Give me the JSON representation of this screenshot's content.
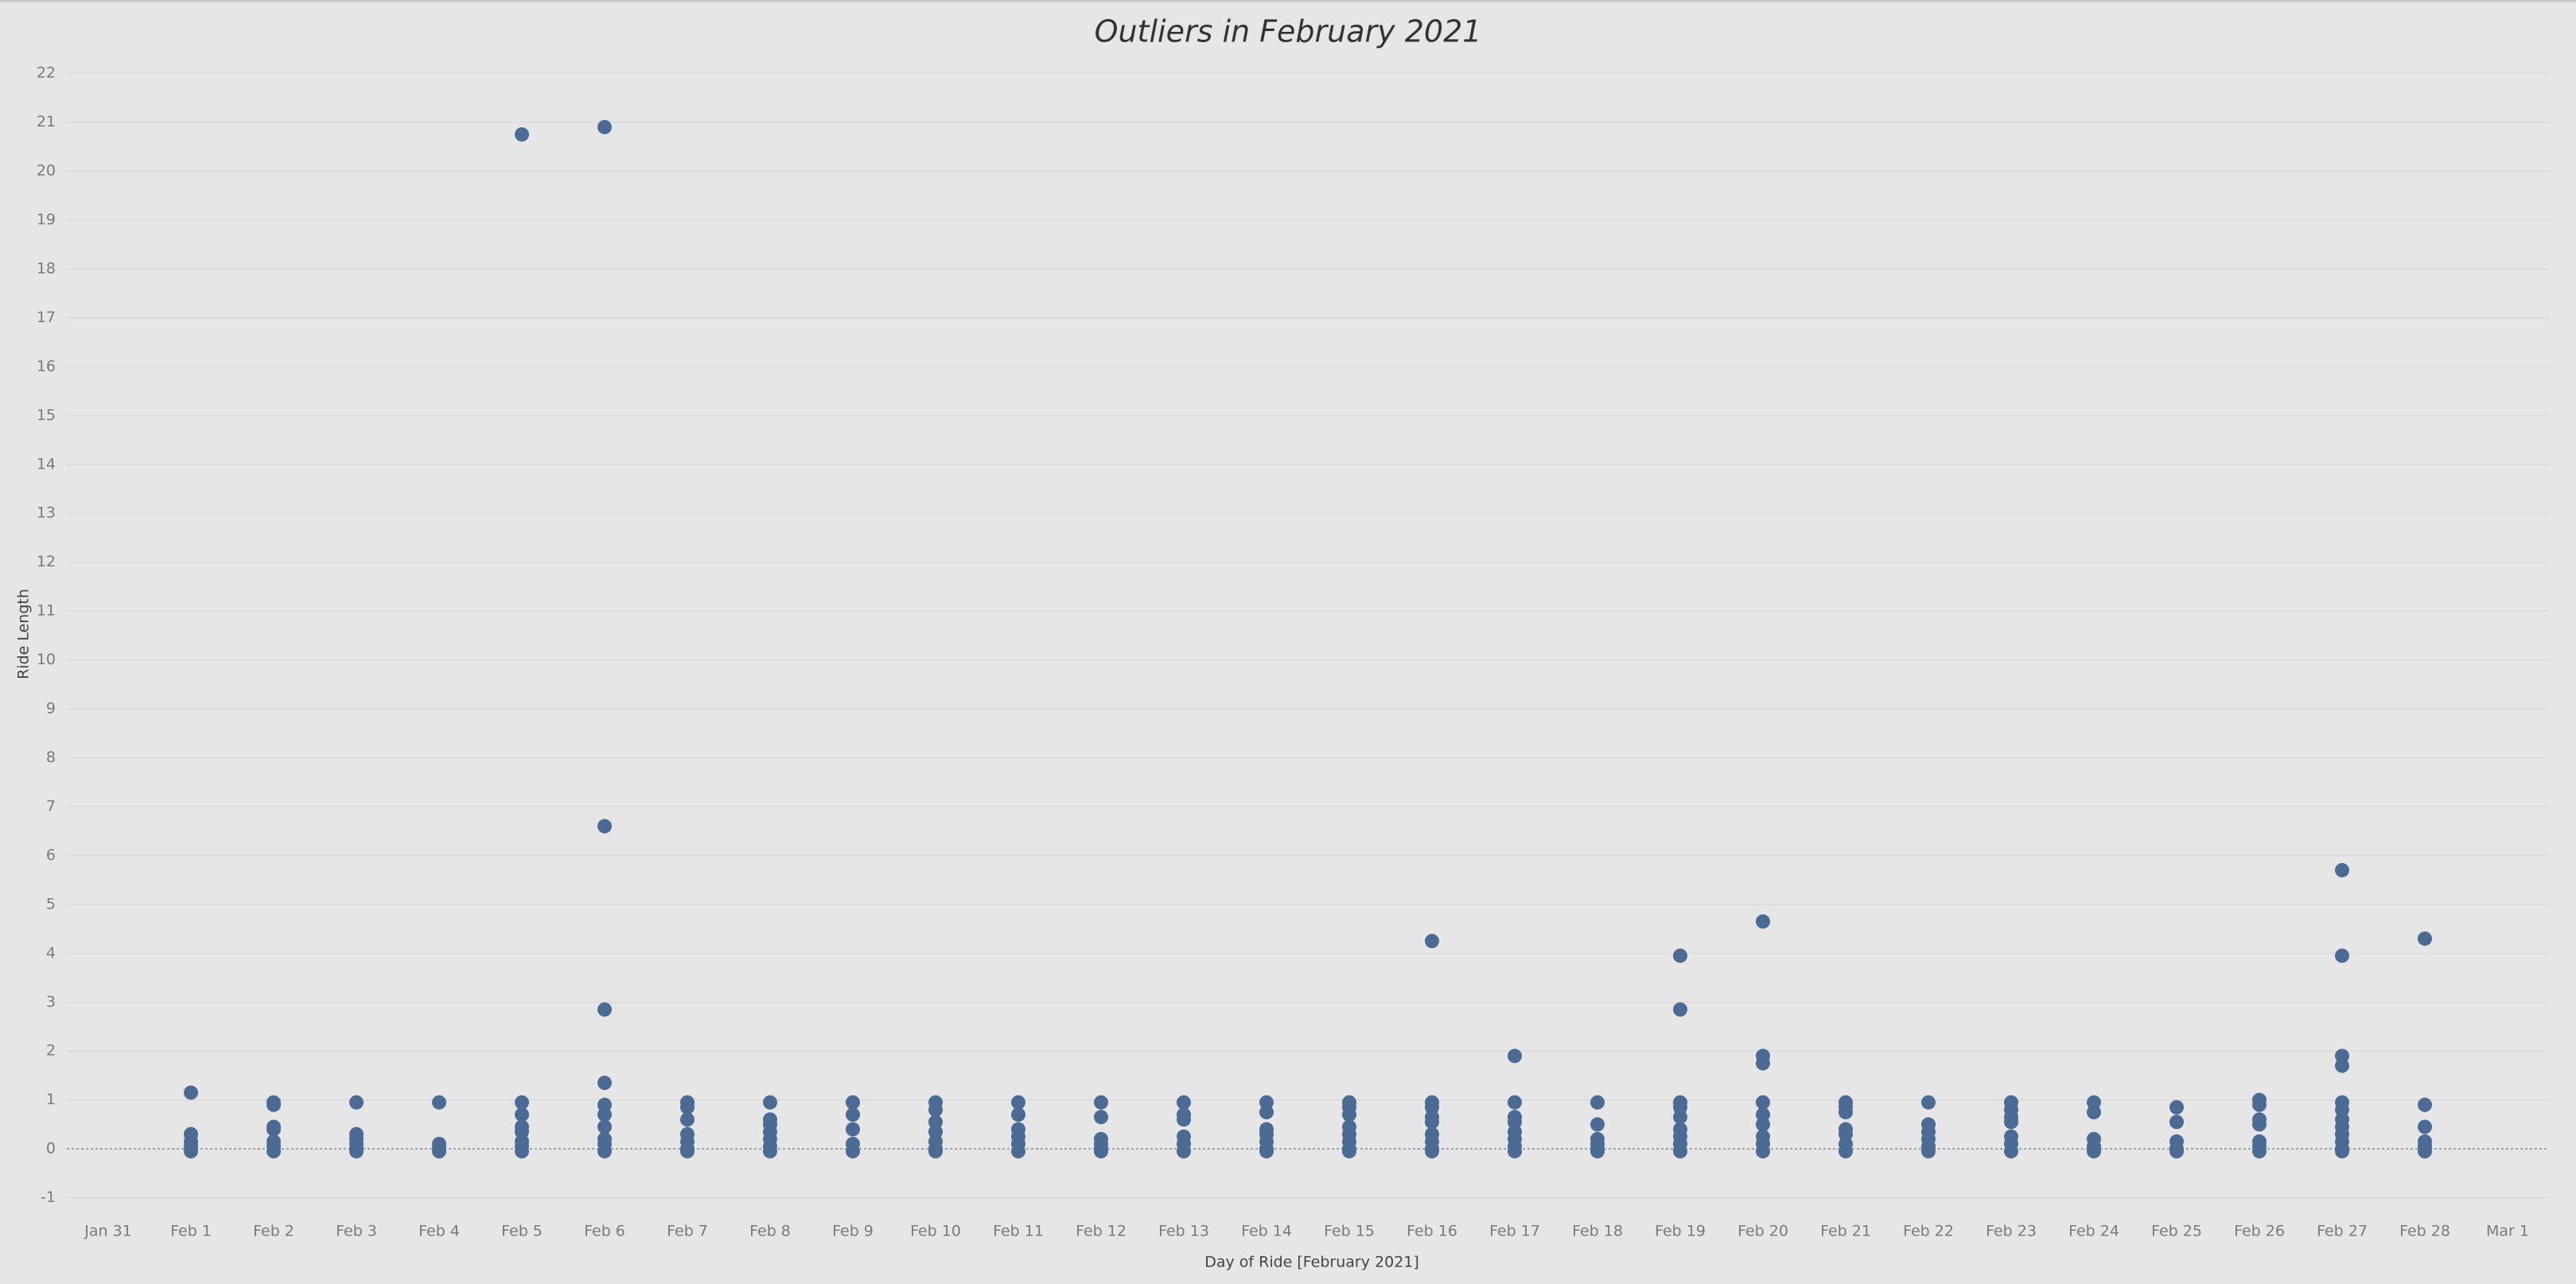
{
  "chart_data": {
    "type": "scatter",
    "title": "Outliers in February 2021",
    "x_label": "Day of Ride [February 2021]",
    "y_label": "Ride Length",
    "categories": [
      "Jan 31",
      "Feb 1",
      "Feb 2",
      "Feb 3",
      "Feb 4",
      "Feb 5",
      "Feb 6",
      "Feb 7",
      "Feb 8",
      "Feb 9",
      "Feb 10",
      "Feb 11",
      "Feb 12",
      "Feb 13",
      "Feb 14",
      "Feb 15",
      "Feb 16",
      "Feb 17",
      "Feb 18",
      "Feb 19",
      "Feb 20",
      "Feb 21",
      "Feb 22",
      "Feb 23",
      "Feb 24",
      "Feb 25",
      "Feb 26",
      "Feb 27",
      "Feb 28",
      "Mar 1"
    ],
    "x": [
      "Feb 1",
      "Feb 1",
      "Feb 1",
      "Feb 1",
      "Feb 1",
      "Feb 2",
      "Feb 2",
      "Feb 2",
      "Feb 2",
      "Feb 2",
      "Feb 2",
      "Feb 2",
      "Feb 3",
      "Feb 3",
      "Feb 3",
      "Feb 3",
      "Feb 3",
      "Feb 3",
      "Feb 4",
      "Feb 4",
      "Feb 4",
      "Feb 4",
      "Feb 5",
      "Feb 5",
      "Feb 5",
      "Feb 5",
      "Feb 5",
      "Feb 5",
      "Feb 5",
      "Feb 5",
      "Feb 6",
      "Feb 6",
      "Feb 6",
      "Feb 6",
      "Feb 6",
      "Feb 6",
      "Feb 6",
      "Feb 6",
      "Feb 6",
      "Feb 6",
      "Feb 7",
      "Feb 7",
      "Feb 7",
      "Feb 7",
      "Feb 7",
      "Feb 7",
      "Feb 7",
      "Feb 8",
      "Feb 8",
      "Feb 8",
      "Feb 8",
      "Feb 8",
      "Feb 8",
      "Feb 8",
      "Feb 9",
      "Feb 9",
      "Feb 9",
      "Feb 9",
      "Feb 9",
      "Feb 10",
      "Feb 10",
      "Feb 10",
      "Feb 10",
      "Feb 10",
      "Feb 10",
      "Feb 10",
      "Feb 11",
      "Feb 11",
      "Feb 11",
      "Feb 11",
      "Feb 11",
      "Feb 11",
      "Feb 12",
      "Feb 12",
      "Feb 12",
      "Feb 12",
      "Feb 12",
      "Feb 12",
      "Feb 13",
      "Feb 13",
      "Feb 13",
      "Feb 13",
      "Feb 13",
      "Feb 13",
      "Feb 14",
      "Feb 14",
      "Feb 14",
      "Feb 14",
      "Feb 14",
      "Feb 14",
      "Feb 14",
      "Feb 15",
      "Feb 15",
      "Feb 15",
      "Feb 15",
      "Feb 15",
      "Feb 15",
      "Feb 15",
      "Feb 15",
      "Feb 16",
      "Feb 16",
      "Feb 16",
      "Feb 16",
      "Feb 16",
      "Feb 16",
      "Feb 16",
      "Feb 16",
      "Feb 16",
      "Feb 17",
      "Feb 17",
      "Feb 17",
      "Feb 17",
      "Feb 17",
      "Feb 17",
      "Feb 17",
      "Feb 17",
      "Feb 18",
      "Feb 18",
      "Feb 18",
      "Feb 18",
      "Feb 18",
      "Feb 18",
      "Feb 19",
      "Feb 19",
      "Feb 19",
      "Feb 19",
      "Feb 19",
      "Feb 19",
      "Feb 19",
      "Feb 19",
      "Feb 19",
      "Feb 20",
      "Feb 20",
      "Feb 20",
      "Feb 20",
      "Feb 20",
      "Feb 20",
      "Feb 20",
      "Feb 20",
      "Feb 20",
      "Feb 21",
      "Feb 21",
      "Feb 21",
      "Feb 21",
      "Feb 21",
      "Feb 21",
      "Feb 21",
      "Feb 22",
      "Feb 22",
      "Feb 22",
      "Feb 22",
      "Feb 22",
      "Feb 22",
      "Feb 23",
      "Feb 23",
      "Feb 23",
      "Feb 23",
      "Feb 23",
      "Feb 23",
      "Feb 23",
      "Feb 24",
      "Feb 24",
      "Feb 24",
      "Feb 24",
      "Feb 24",
      "Feb 25",
      "Feb 25",
      "Feb 25",
      "Feb 25",
      "Feb 25",
      "Feb 26",
      "Feb 26",
      "Feb 26",
      "Feb 26",
      "Feb 26",
      "Feb 26",
      "Feb 26",
      "Feb 27",
      "Feb 27",
      "Feb 27",
      "Feb 27",
      "Feb 27",
      "Feb 27",
      "Feb 27",
      "Feb 27",
      "Feb 27",
      "Feb 27",
      "Feb 27",
      "Feb 27",
      "Feb 28",
      "Feb 28",
      "Feb 28",
      "Feb 28",
      "Feb 28",
      "Feb 28"
    ],
    "values": [
      1.15,
      0.3,
      0.15,
      0.05,
      -0.05,
      0.95,
      0.9,
      0.45,
      0.4,
      0.15,
      0.05,
      -0.05,
      0.95,
      0.3,
      0.2,
      0.1,
      0,
      -0.05,
      0.95,
      0.1,
      0,
      -0.05,
      20.75,
      0.95,
      0.7,
      0.45,
      0.35,
      0.15,
      0.05,
      -0.05,
      20.9,
      6.6,
      2.85,
      1.35,
      0.9,
      0.7,
      0.45,
      0.2,
      0.1,
      -0.05,
      0.95,
      0.85,
      0.6,
      0.3,
      0.15,
      0,
      -0.05,
      0.95,
      0.6,
      0.5,
      0.35,
      0.2,
      0.05,
      -0.05,
      0.95,
      0.7,
      0.4,
      0.1,
      -0.05,
      0.95,
      0.8,
      0.55,
      0.35,
      0.15,
      0,
      -0.05,
      0.95,
      0.7,
      0.4,
      0.25,
      0.1,
      -0.05,
      0.95,
      0.65,
      0.2,
      0.1,
      0,
      -0.05,
      0.95,
      0.7,
      0.6,
      0.25,
      0.1,
      -0.05,
      0.95,
      0.75,
      0.4,
      0.3,
      0.15,
      0,
      -0.05,
      0.95,
      0.85,
      0.7,
      0.45,
      0.3,
      0.15,
      0,
      -0.05,
      4.25,
      0.95,
      0.85,
      0.65,
      0.55,
      0.3,
      0.15,
      0,
      -0.05,
      1.9,
      0.95,
      0.65,
      0.55,
      0.35,
      0.2,
      0.05,
      -0.05,
      0.95,
      0.5,
      0.2,
      0.1,
      0,
      -0.05,
      3.95,
      2.85,
      0.95,
      0.85,
      0.65,
      0.4,
      0.25,
      0.1,
      -0.05,
      4.65,
      1.9,
      1.75,
      0.95,
      0.7,
      0.5,
      0.25,
      0.1,
      -0.05,
      0.95,
      0.85,
      0.75,
      0.4,
      0.3,
      0.1,
      -0.05,
      0.95,
      0.5,
      0.35,
      0.2,
      0.05,
      -0.05,
      0.95,
      0.8,
      0.65,
      0.55,
      0.25,
      0.1,
      -0.05,
      0.95,
      0.75,
      0.2,
      0.05,
      -0.05,
      0.85,
      0.55,
      0.15,
      0,
      -0.05,
      1.0,
      0.9,
      0.6,
      0.5,
      0.15,
      0.05,
      -0.05,
      5.7,
      3.95,
      1.9,
      1.7,
      0.95,
      0.8,
      0.6,
      0.45,
      0.3,
      0.15,
      0,
      -0.05,
      4.3,
      0.9,
      0.45,
      0.15,
      0.05,
      -0.05
    ],
    "color": "#4b6b95",
    "ylim": [
      -1.3,
      22.1
    ],
    "yticks": [
      -1,
      0,
      1,
      2,
      3,
      4,
      5,
      6,
      7,
      8,
      9,
      10,
      11,
      12,
      13,
      14,
      15,
      16,
      17,
      18,
      19,
      20,
      21,
      22
    ],
    "grid": true
  }
}
